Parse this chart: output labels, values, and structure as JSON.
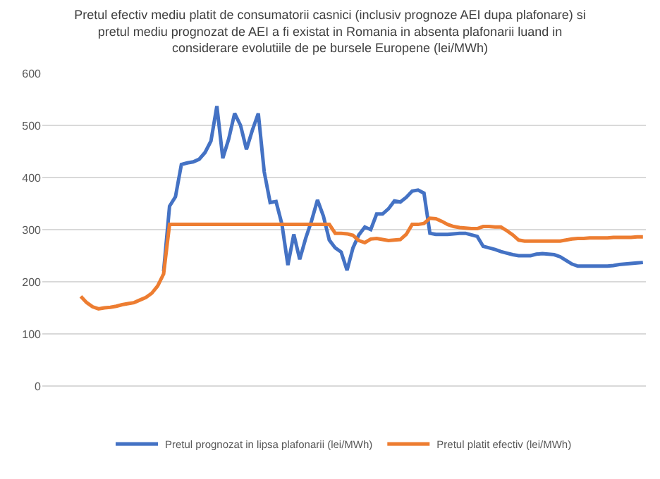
{
  "chart_data": {
    "type": "line",
    "title": "Pretul efectiv mediu platit de consumatorii casnici (inclusiv prognoze AEI dupa plafonare) si\npretul mediu prognozat de AEI a fi existat in Romania in absenta plafonarii luand in\nconsiderare evolutiile de pe bursele Europene (lei/MWh)",
    "categories": [
      null,
      null,
      null,
      null,
      null,
      null,
      null,
      null,
      null,
      null,
      null,
      null,
      null,
      null,
      null,
      null,
      null,
      null,
      null,
      null,
      null,
      null,
      null,
      null,
      null,
      null,
      null,
      null,
      null,
      null,
      null,
      null,
      null,
      null,
      null,
      null,
      null,
      null,
      null,
      null,
      null,
      null,
      null,
      null,
      null,
      null,
      null,
      null,
      null,
      null,
      null,
      null,
      null,
      null,
      null,
      null,
      null,
      null,
      null,
      null,
      null,
      null,
      null,
      null,
      null,
      null,
      null,
      null,
      null,
      null,
      null,
      null,
      null,
      null,
      null,
      null,
      null,
      null,
      null,
      null,
      null,
      null,
      null,
      null,
      null,
      null,
      null,
      null,
      null,
      null,
      null,
      null,
      null,
      null,
      null,
      null,
      null,
      null,
      null,
      null,
      null,
      null
    ],
    "series": [
      {
        "name": "Pretul prognozat in lipsa plafonarii (lei/MWh)",
        "color": "#4472c4",
        "values": [
          null,
          null,
          null,
          null,
          null,
          null,
          null,
          null,
          null,
          null,
          null,
          null,
          null,
          null,
          null,
          null,
          null,
          null,
          null,
          null,
          220,
          345,
          363,
          425,
          428,
          430,
          435,
          448,
          470,
          537,
          437,
          474,
          523,
          500,
          454,
          491,
          523,
          411,
          352,
          354,
          310,
          232,
          291,
          243,
          283,
          317,
          357,
          326,
          280,
          265,
          257,
          222,
          265,
          290,
          305,
          300,
          330,
          330,
          340,
          355,
          353,
          362,
          374,
          376,
          370,
          293,
          291,
          291,
          291,
          292,
          293,
          293,
          290,
          287,
          268,
          265,
          262,
          258,
          255,
          252,
          250,
          250,
          250,
          253,
          254,
          253,
          252,
          248,
          241,
          234,
          230,
          230,
          230,
          230,
          230,
          230,
          231,
          233,
          234,
          235,
          236,
          237
        ]
      },
      {
        "name": "Pretul platit efectiv (lei/MWh)",
        "color": "#ed7d31",
        "values": [
          null,
          null,
          null,
          null,
          null,
          null,
          172,
          160,
          152,
          148,
          150,
          151,
          153,
          156,
          158,
          160,
          165,
          170,
          178,
          192,
          215,
          310,
          310,
          310,
          310,
          310,
          310,
          310,
          310,
          310,
          310,
          310,
          310,
          310,
          310,
          310,
          310,
          310,
          310,
          310,
          310,
          310,
          310,
          310,
          310,
          310,
          310,
          310,
          310,
          293,
          293,
          292,
          289,
          279,
          275,
          282,
          283,
          281,
          279,
          280,
          281,
          291,
          310,
          310,
          312,
          322,
          321,
          316,
          310,
          306,
          304,
          303,
          302,
          302,
          306,
          306,
          305,
          305,
          298,
          290,
          280,
          278,
          278,
          278,
          278,
          278,
          278,
          278,
          280,
          282,
          283,
          283,
          284,
          284,
          284,
          284,
          285,
          285,
          285,
          285,
          286,
          286
        ]
      }
    ],
    "ylim": [
      0,
      600
    ],
    "yticks": [
      0,
      100,
      200,
      300,
      400,
      500,
      600
    ],
    "grid": "y",
    "legend": "bottom",
    "marker": "none",
    "line_style": "solid"
  }
}
